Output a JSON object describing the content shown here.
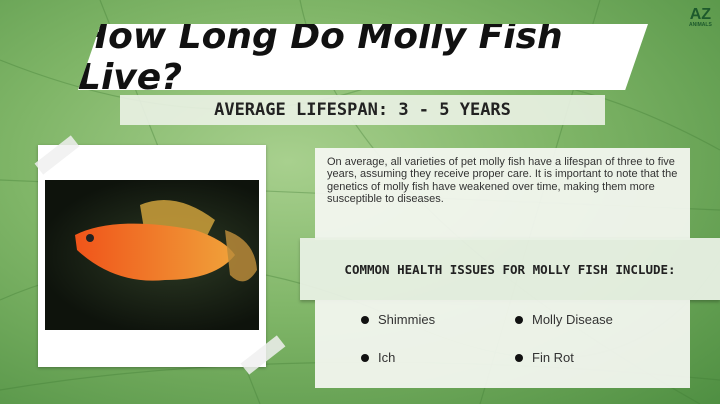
{
  "title": "How Long Do Molly Fish Live?",
  "logo": {
    "text": "AZ",
    "sub": "ANIMALS"
  },
  "subtitle": "AVERAGE LIFESPAN: 3 - 5 YEARS",
  "description": "On average, all varieties of pet molly fish have a lifespan of three to five years, assuming they receive proper care. It is important to note that the genetics of molly fish have weakened over time, making them more susceptible to diseases.",
  "health_heading": "COMMON HEALTH ISSUES FOR MOLLY FISH INCLUDE:",
  "health_issues": [
    "Shimmies",
    "Molly Disease",
    "Ich",
    "Fin Rot"
  ],
  "colors": {
    "background": "#7fb567",
    "fish": "#e8741c"
  }
}
